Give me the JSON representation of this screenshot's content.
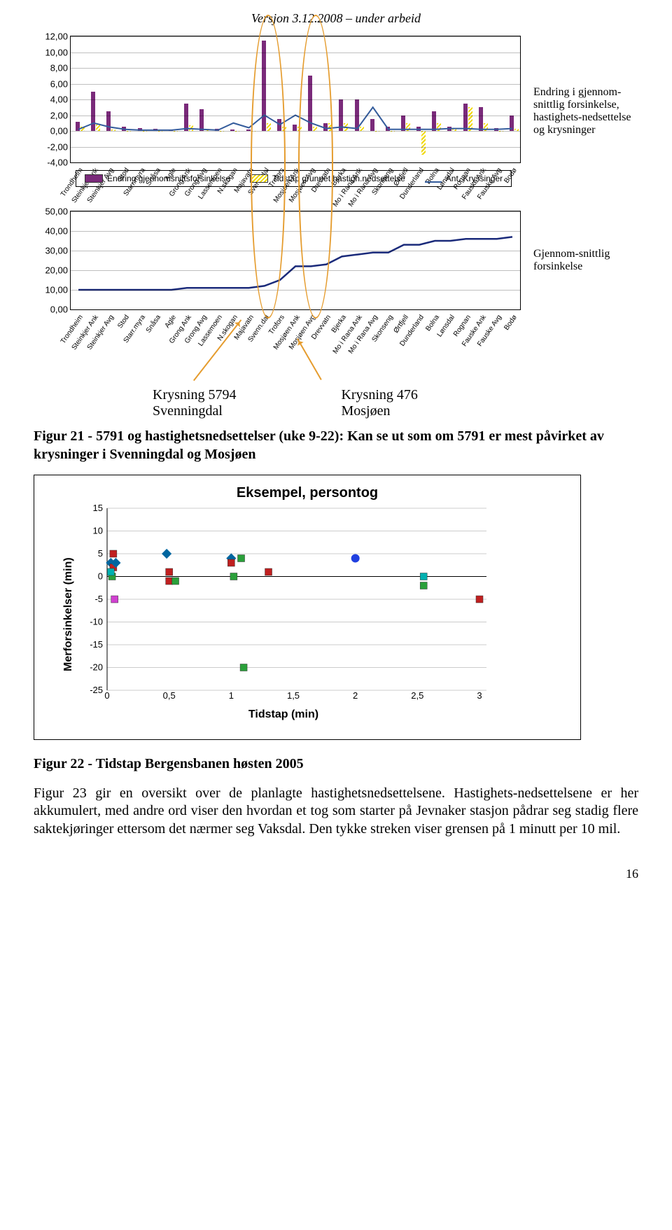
{
  "header": "Versjon 3.12.2008 – under arbeid",
  "stations": [
    "Trondheim",
    "Steinkjer Ank",
    "Steinkjer Avg",
    "Stod",
    "Starr.myra",
    "Snåsa",
    "Agle",
    "Grong Ank",
    "Grong Avg",
    "Lassemoen",
    "N.skogan",
    "Majavatn",
    "Svenn.dal",
    "Trofors",
    "Mosjøen Ank",
    "Mosjøen Avg",
    "Drevvatn",
    "Bjerka",
    "Mo i Rana Ank",
    "Mo i Rana Avg",
    "Skonseng",
    "Ørtfjell",
    "Dunderland",
    "Bolna",
    "Lønsdal",
    "Rognan",
    "Fauske Ank",
    "Fauske Avg",
    "Bodø"
  ],
  "chart1": {
    "y_ticks": [
      "-4,00",
      "-2,00",
      "0,00",
      "2,00",
      "4,00",
      "6,00",
      "8,00",
      "10,00",
      "12,00"
    ],
    "ymin": -4,
    "ymax": 12,
    "bar1_color": "#7a2a7a",
    "bar2_style": "hatch",
    "line_color": "#345c9c",
    "bar1": [
      1.2,
      5.0,
      2.5,
      0.5,
      0.4,
      0.3,
      0.2,
      3.5,
      2.8,
      0.3,
      0.2,
      0.2,
      11.5,
      1.5,
      0.8,
      7.0,
      1.0,
      4.0,
      4.0,
      1.5,
      0.5,
      2.0,
      0.5,
      2.5,
      0.5,
      3.5,
      3.0,
      0.4,
      2.0
    ],
    "bar2": [
      0.5,
      0.8,
      0.2,
      0,
      0,
      0,
      0,
      0.7,
      0.3,
      0,
      0,
      0,
      1.0,
      0.5,
      0.5,
      0.5,
      1.0,
      1.0,
      0.5,
      0,
      0,
      1.0,
      -3.0,
      1.0,
      0.3,
      3.0,
      1.0,
      0,
      0.3
    ],
    "line": [
      0.2,
      1.0,
      0.5,
      0.2,
      0.1,
      0.1,
      0.1,
      0.3,
      0.2,
      0.1,
      1.0,
      0.4,
      2.0,
      0.8,
      2.0,
      1.0,
      0.3,
      0.5,
      0.3,
      3.0,
      0.2,
      0.2,
      0.2,
      0.2,
      0.3,
      0.3,
      0.2,
      0.2,
      0.3
    ],
    "legend1": "Endring gjennomsnittsforsinkelse",
    "legend2": "Tidstap grunnet hastigh.nedsettelse",
    "legend3": "Ant. Kryssinger",
    "side_label": "Endring i gjennom-snittlig forsinkelse, hastighets-nedsettelse og krysninger"
  },
  "chart2": {
    "y_ticks": [
      "0,00",
      "10,00",
      "20,00",
      "30,00",
      "40,00",
      "50,00"
    ],
    "ymin": 0,
    "ymax": 50,
    "line_color": "#1a2a7a",
    "line": [
      10,
      10,
      10,
      10,
      10,
      10,
      10,
      11,
      11,
      11,
      11,
      11,
      12,
      15,
      22,
      22,
      23,
      27,
      28,
      29,
      29,
      33,
      33,
      35,
      35,
      36,
      36,
      36,
      37
    ],
    "side_label": "Gjennom-snittlig forsinkelse"
  },
  "captions": {
    "left1": "Krysning 5794",
    "left2": "Svenningdal",
    "right1": "Krysning 476",
    "right2": "Mosjøen"
  },
  "figure21": "Figur 21 - 5791 og hastighetsnedsettelser (uke 9-22): Kan se ut som om 5791 er mest påvirket av krysninger i Svenningdal og Mosjøen",
  "scatter": {
    "title": "Eksempel, persontog",
    "ylabel": "Merforsinkelser (min)",
    "xlabel": "Tidstap (min)",
    "x_ticks": [
      "0",
      "0,5",
      "1",
      "1,5",
      "2",
      "2,5",
      "3"
    ],
    "y_ticks": [
      "-25",
      "-20",
      "-15",
      "-10",
      "-5",
      "0",
      "5",
      "10",
      "15"
    ],
    "xmin": 0,
    "xmax": 3,
    "ymin": -25,
    "ymax": 15,
    "gridline_color": "#cccccc",
    "points": [
      {
        "x": 0.03,
        "y": 3,
        "c": "#0066a0",
        "s": "diamond"
      },
      {
        "x": 0.04,
        "y": 0,
        "c": "#2aa03a",
        "s": "square"
      },
      {
        "x": 0.05,
        "y": 5,
        "c": "#c02020",
        "s": "square"
      },
      {
        "x": 0.05,
        "y": 2,
        "c": "#c02020",
        "s": "square"
      },
      {
        "x": 0.06,
        "y": -5,
        "c": "#d040d0",
        "s": "square"
      },
      {
        "x": 0.07,
        "y": 3,
        "c": "#0066a0",
        "s": "diamond"
      },
      {
        "x": 0.03,
        "y": 1,
        "c": "#00b0b0",
        "s": "square"
      },
      {
        "x": 0.5,
        "y": 1,
        "c": "#c02020",
        "s": "square"
      },
      {
        "x": 0.5,
        "y": -1,
        "c": "#c02020",
        "s": "square"
      },
      {
        "x": 0.48,
        "y": 5,
        "c": "#0066a0",
        "s": "diamond"
      },
      {
        "x": 0.55,
        "y": -1,
        "c": "#2aa03a",
        "s": "square"
      },
      {
        "x": 1.0,
        "y": 4,
        "c": "#0066a0",
        "s": "diamond"
      },
      {
        "x": 1.0,
        "y": 3,
        "c": "#c02020",
        "s": "square"
      },
      {
        "x": 1.02,
        "y": 0,
        "c": "#2aa03a",
        "s": "square"
      },
      {
        "x": 1.08,
        "y": 4,
        "c": "#2aa03a",
        "s": "square"
      },
      {
        "x": 1.1,
        "y": -20,
        "c": "#2aa03a",
        "s": "square"
      },
      {
        "x": 1.3,
        "y": 1,
        "c": "#c02020",
        "s": "square"
      },
      {
        "x": 2.0,
        "y": 4,
        "c": "#2040e0",
        "s": "circle"
      },
      {
        "x": 2.55,
        "y": 0,
        "c": "#00b0b0",
        "s": "square"
      },
      {
        "x": 2.55,
        "y": -2,
        "c": "#2aa03a",
        "s": "square"
      },
      {
        "x": 3.0,
        "y": -5,
        "c": "#c02020",
        "s": "square"
      }
    ]
  },
  "figure22": "Figur 22 - Tidstap Bergensbanen høsten 2005",
  "figure23": "Figur 23 gir en oversikt over de planlagte hastighetsnedsettelsene. Hastighets-nedsettelsene er her akkumulert, med andre ord viser den hvordan et tog som starter på Jevnaker stasjon pådrar seg stadig flere saktekjøringer ettersom det nærmer seg Vaksdal. Den tykke streken viser grensen på 1 minutt per 10 mil.",
  "pagenum": "16"
}
